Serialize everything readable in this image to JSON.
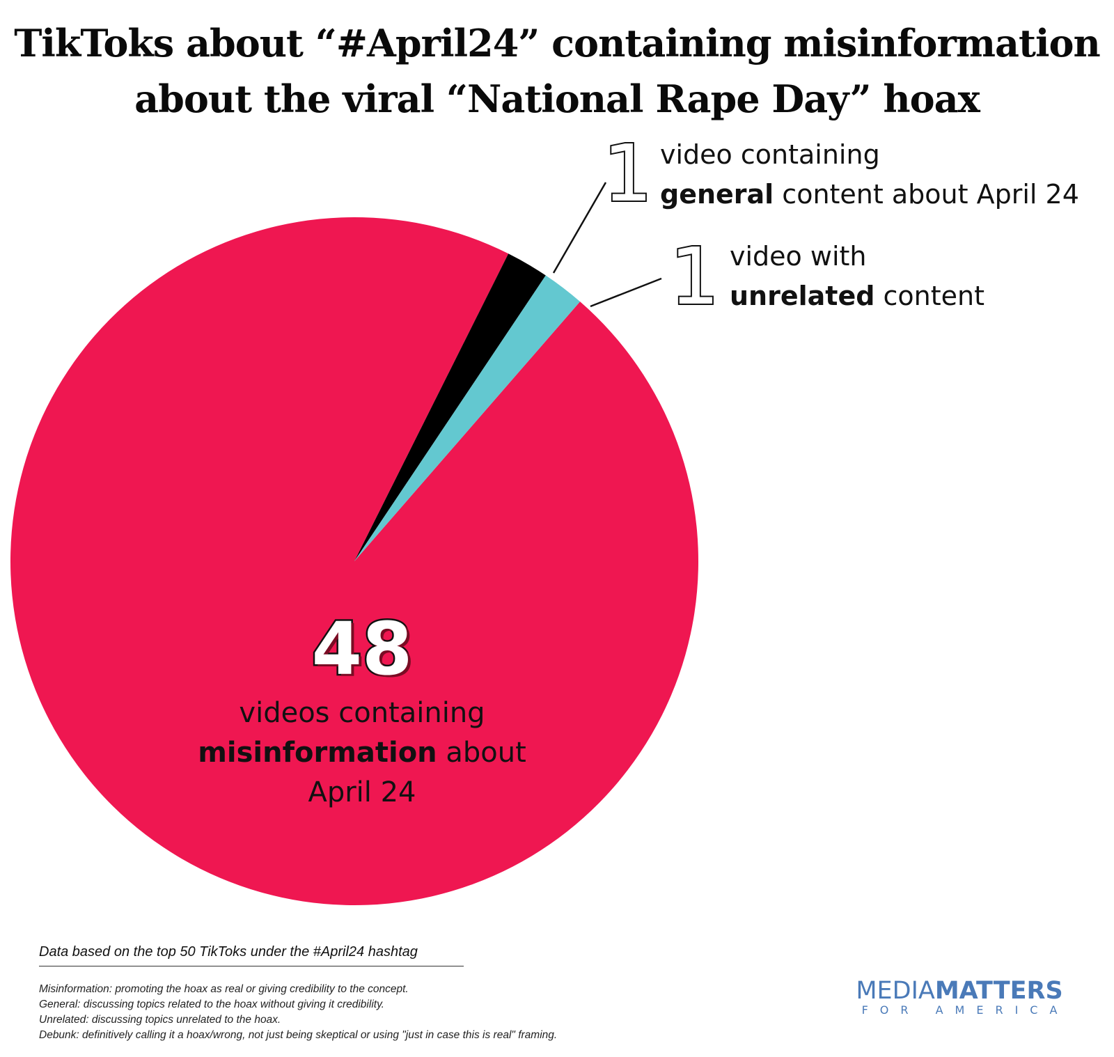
{
  "title": {
    "line1": "TikToks about “#April24” containing misinformation",
    "line2": "about the viral “National Rape Day” hoax"
  },
  "chart_data": {
    "type": "pie",
    "categories": [
      "misinformation",
      "general",
      "unrelated"
    ],
    "values": [
      48,
      1,
      1
    ],
    "colors": [
      "#ef1751",
      "#000000",
      "#63c8d0"
    ],
    "legend": "none",
    "grid": false,
    "labels": {
      "misinformation": {
        "value": "48",
        "line1": "videos containing",
        "bold": "misinformation",
        "line2_rest": " about",
        "line3": "April 24"
      },
      "general": {
        "value": "1",
        "line1": "video containing",
        "bold": "general",
        "line2_rest": " content about April 24"
      },
      "unrelated": {
        "value": "1",
        "line1": "video with",
        "bold": "unrelated",
        "line2_rest": " content"
      }
    }
  },
  "notes": {
    "head": "Data based on the top 50 TikToks under the #April24 hashtag",
    "items": [
      "Misinformation: promoting the hoax as real or giving credibility to the concept.",
      "General: discussing topics related to the hoax without giving it credibility.",
      "Unrelated: discussing topics unrelated to the hoax.",
      "Debunk: definitively calling it a hoax/wrong, not just being skeptical or using \"just in case this is real\" framing."
    ]
  },
  "logo": {
    "part1": "MEDIA",
    "part2": "MATTERS",
    "sub": "FOR AMERICA"
  }
}
